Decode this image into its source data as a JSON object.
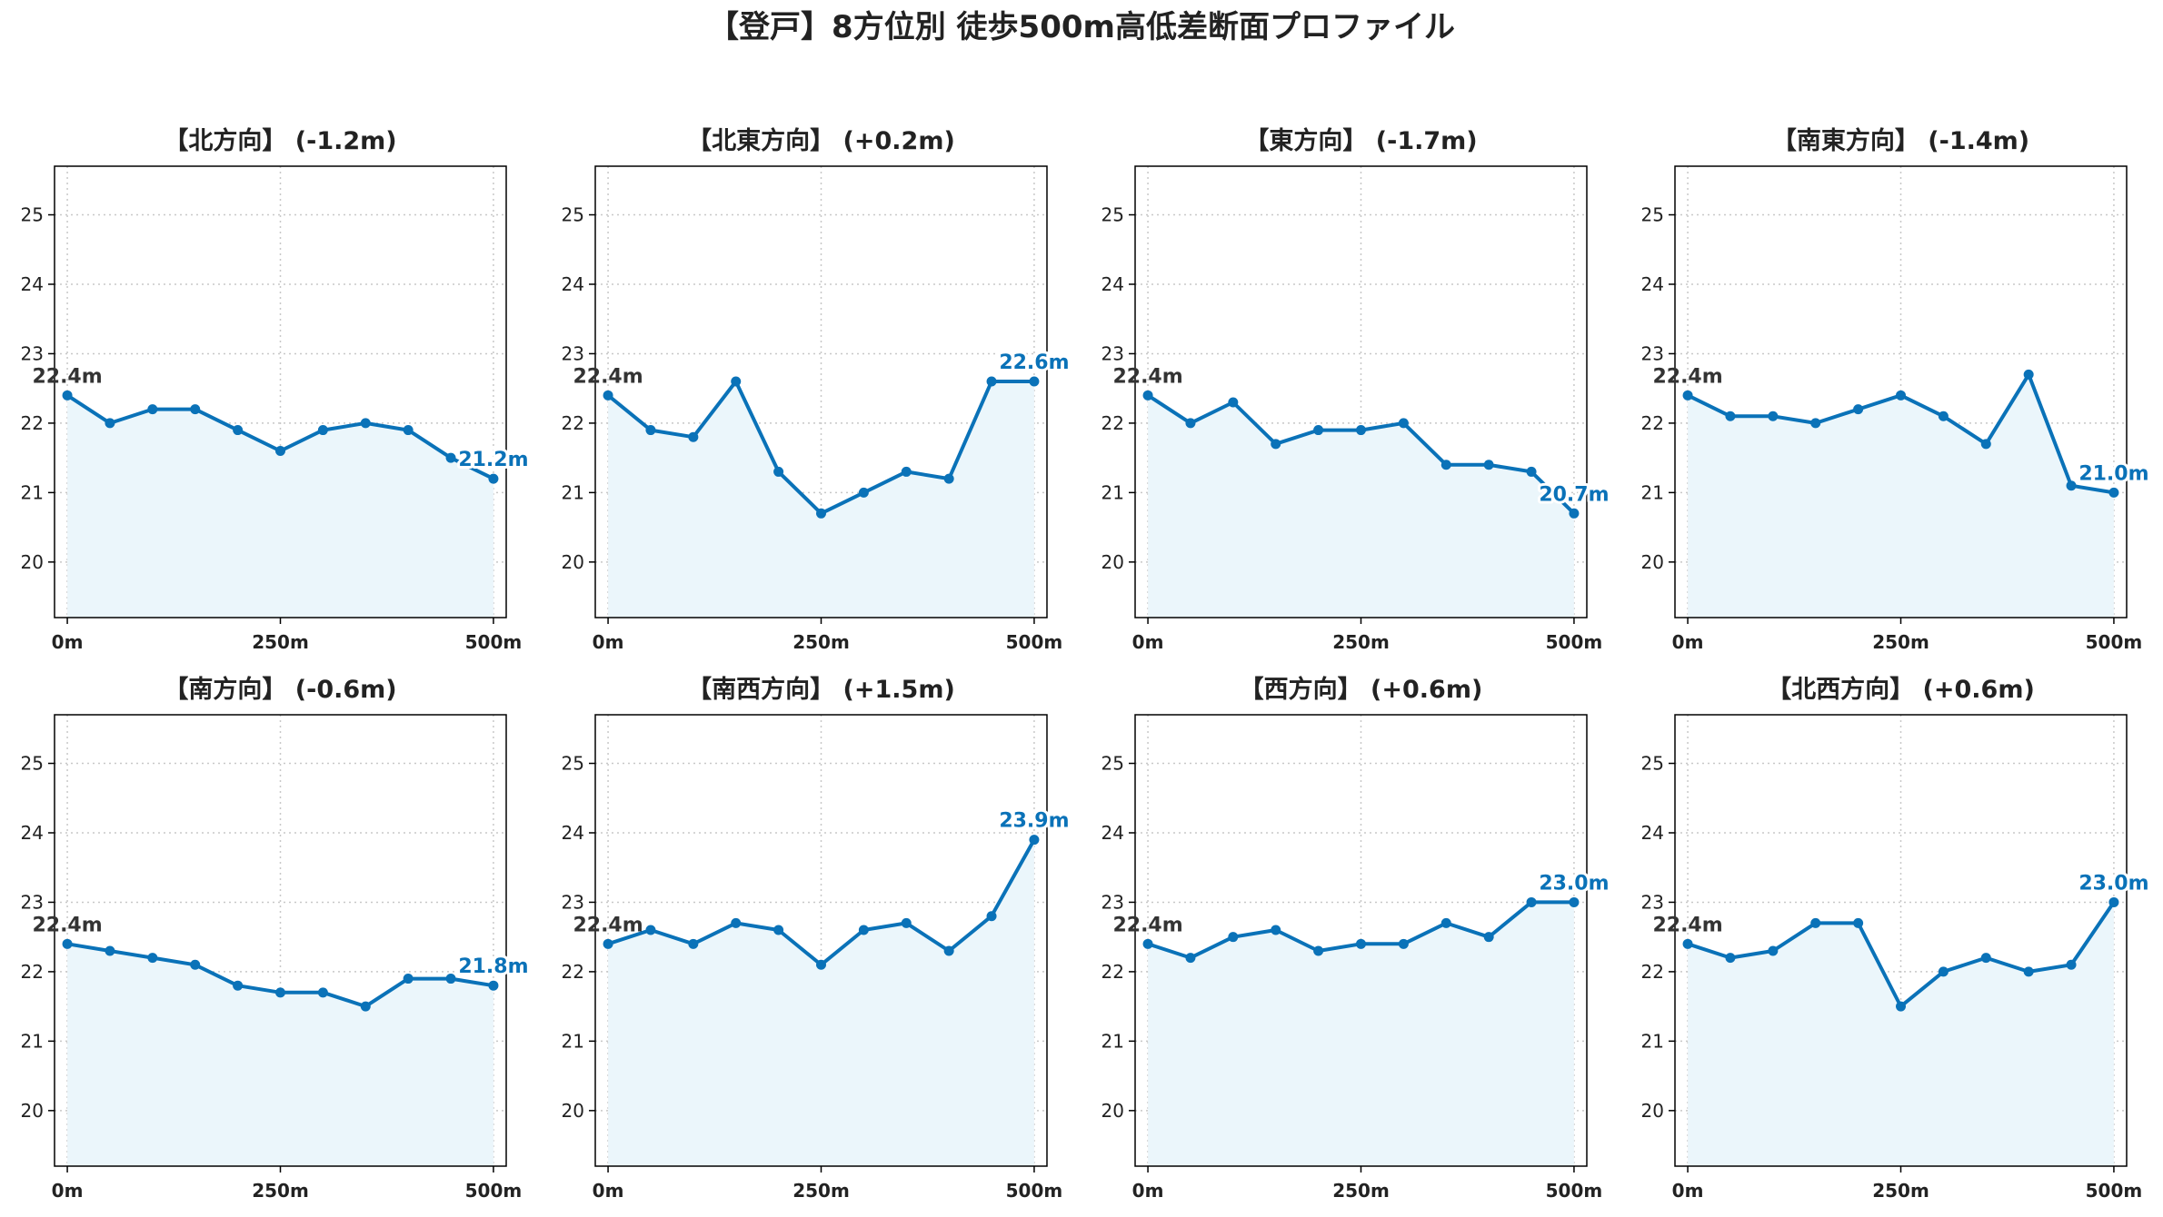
{
  "title": "【登戸】8方位別 徒歩500m高低差断面プロファイル",
  "colors": {
    "line": "#0a72b8",
    "fill": "#ebf6fb",
    "start_label": "#333333",
    "end_label": "#0a72b8",
    "grid": "#c8c8c8",
    "axis": "#000000"
  },
  "chart_data": [
    {
      "type": "line",
      "title": "【北方向】 (-1.2m)",
      "x": [
        0,
        50,
        100,
        150,
        200,
        250,
        300,
        350,
        400,
        450,
        500
      ],
      "values": [
        22.4,
        22.0,
        22.2,
        22.2,
        21.9,
        21.6,
        21.9,
        22.0,
        21.9,
        21.5,
        21.2
      ],
      "start_label": "22.4m",
      "end_label": "21.2m",
      "xticks": [
        "0m",
        "250m",
        "500m"
      ],
      "yticks": [
        "20",
        "21",
        "22",
        "23",
        "24",
        "25"
      ],
      "xlim": [
        -15,
        515
      ],
      "ylim": [
        19.2,
        25.7
      ],
      "grid": true
    },
    {
      "type": "line",
      "title": "【北東方向】 (+0.2m)",
      "x": [
        0,
        50,
        100,
        150,
        200,
        250,
        300,
        350,
        400,
        450,
        500
      ],
      "values": [
        22.4,
        21.9,
        21.8,
        22.6,
        21.3,
        20.7,
        21.0,
        21.3,
        21.2,
        22.6,
        22.6
      ],
      "start_label": "22.4m",
      "end_label": "22.6m",
      "xticks": [
        "0m",
        "250m",
        "500m"
      ],
      "yticks": [
        "20",
        "21",
        "22",
        "23",
        "24",
        "25"
      ],
      "xlim": [
        -15,
        515
      ],
      "ylim": [
        19.2,
        25.7
      ],
      "grid": true
    },
    {
      "type": "line",
      "title": "【東方向】 (-1.7m)",
      "x": [
        0,
        50,
        100,
        150,
        200,
        250,
        300,
        350,
        400,
        450,
        500
      ],
      "values": [
        22.4,
        22.0,
        22.3,
        21.7,
        21.9,
        21.9,
        22.0,
        21.4,
        21.4,
        21.3,
        20.7
      ],
      "start_label": "22.4m",
      "end_label": "20.7m",
      "xticks": [
        "0m",
        "250m",
        "500m"
      ],
      "yticks": [
        "20",
        "21",
        "22",
        "23",
        "24",
        "25"
      ],
      "xlim": [
        -15,
        515
      ],
      "ylim": [
        19.2,
        25.7
      ],
      "grid": true
    },
    {
      "type": "line",
      "title": "【南東方向】 (-1.4m)",
      "x": [
        0,
        50,
        100,
        150,
        200,
        250,
        300,
        350,
        400,
        450,
        500
      ],
      "values": [
        22.4,
        22.1,
        22.1,
        22.0,
        22.2,
        22.4,
        22.1,
        21.7,
        22.7,
        21.1,
        21.0
      ],
      "start_label": "22.4m",
      "end_label": "21.0m",
      "xticks": [
        "0m",
        "250m",
        "500m"
      ],
      "yticks": [
        "20",
        "21",
        "22",
        "23",
        "24",
        "25"
      ],
      "xlim": [
        -15,
        515
      ],
      "ylim": [
        19.2,
        25.7
      ],
      "grid": true
    },
    {
      "type": "line",
      "title": "【南方向】 (-0.6m)",
      "x": [
        0,
        50,
        100,
        150,
        200,
        250,
        300,
        350,
        400,
        450,
        500
      ],
      "values": [
        22.4,
        22.3,
        22.2,
        22.1,
        21.8,
        21.7,
        21.7,
        21.5,
        21.9,
        21.9,
        21.8
      ],
      "start_label": "22.4m",
      "end_label": "21.8m",
      "xticks": [
        "0m",
        "250m",
        "500m"
      ],
      "yticks": [
        "20",
        "21",
        "22",
        "23",
        "24",
        "25"
      ],
      "xlim": [
        -15,
        515
      ],
      "ylim": [
        19.2,
        25.7
      ],
      "grid": true
    },
    {
      "type": "line",
      "title": "【南西方向】 (+1.5m)",
      "x": [
        0,
        50,
        100,
        150,
        200,
        250,
        300,
        350,
        400,
        450,
        500
      ],
      "values": [
        22.4,
        22.6,
        22.4,
        22.7,
        22.6,
        22.1,
        22.6,
        22.7,
        22.3,
        22.8,
        23.9
      ],
      "start_label": "22.4m",
      "end_label": "23.9m",
      "xticks": [
        "0m",
        "250m",
        "500m"
      ],
      "yticks": [
        "20",
        "21",
        "22",
        "23",
        "24",
        "25"
      ],
      "xlim": [
        -15,
        515
      ],
      "ylim": [
        19.2,
        25.7
      ],
      "grid": true
    },
    {
      "type": "line",
      "title": "【西方向】 (+0.6m)",
      "x": [
        0,
        50,
        100,
        150,
        200,
        250,
        300,
        350,
        400,
        450,
        500
      ],
      "values": [
        22.4,
        22.2,
        22.5,
        22.6,
        22.3,
        22.4,
        22.4,
        22.7,
        22.5,
        23.0,
        23.0
      ],
      "start_label": "22.4m",
      "end_label": "23.0m",
      "xticks": [
        "0m",
        "250m",
        "500m"
      ],
      "yticks": [
        "20",
        "21",
        "22",
        "23",
        "24",
        "25"
      ],
      "xlim": [
        -15,
        515
      ],
      "ylim": [
        19.2,
        25.7
      ],
      "grid": true
    },
    {
      "type": "line",
      "title": "【北西方向】 (+0.6m)",
      "x": [
        0,
        50,
        100,
        150,
        200,
        250,
        300,
        350,
        400,
        450,
        500
      ],
      "values": [
        22.4,
        22.2,
        22.3,
        22.7,
        22.7,
        21.5,
        22.0,
        22.2,
        22.0,
        22.1,
        23.0
      ],
      "start_label": "22.4m",
      "end_label": "23.0m",
      "xticks": [
        "0m",
        "250m",
        "500m"
      ],
      "yticks": [
        "20",
        "21",
        "22",
        "23",
        "24",
        "25"
      ],
      "xlim": [
        -15,
        515
      ],
      "ylim": [
        19.2,
        25.7
      ],
      "grid": true
    }
  ]
}
